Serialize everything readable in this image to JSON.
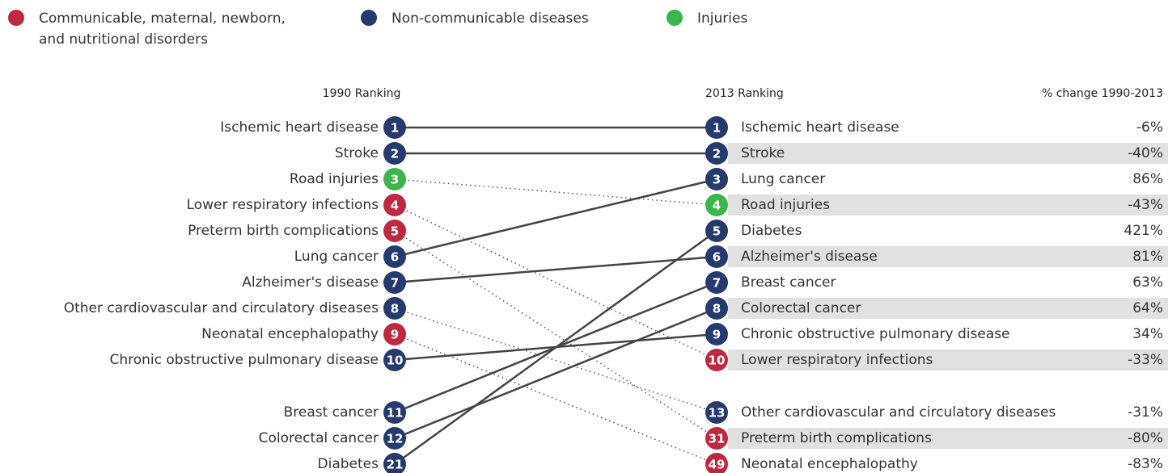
{
  "chart_data": {
    "type": "slope",
    "legend": [
      {
        "name": [
          "Communicable, maternal, newborn,",
          "and nutritional disorders"
        ],
        "color": "#c0283f"
      },
      {
        "name": [
          "Non-communicable diseases"
        ],
        "color": "#253a6e"
      },
      {
        "name": [
          "Injuries"
        ],
        "color": "#3cb54a"
      }
    ],
    "left_title": "1990 Ranking",
    "right_title": "2013 Ranking",
    "change_title": "% change 1990-2013",
    "left_labels": [
      "Ischemic heart disease",
      "Stroke",
      "Road injuries",
      "Lower respiratory infections",
      "Preterm birth complications",
      "Lung cancer",
      "Alzheimer's disease",
      "Other cardiovascular and circulatory diseases",
      "Neonatal encephalopathy",
      "Chronic obstructive pulmonary disease",
      "Breast cancer",
      "Colorectal cancer",
      "Diabetes"
    ],
    "left_ranks": [
      1,
      2,
      3,
      4,
      5,
      6,
      7,
      8,
      9,
      10,
      11,
      12,
      21
    ],
    "left_groups": [
      1,
      1,
      2,
      0,
      0,
      1,
      1,
      1,
      0,
      1,
      1,
      1,
      1
    ],
    "right_labels": [
      "Ischemic heart disease",
      "Stroke",
      "Lung cancer",
      "Road injuries",
      "Diabetes",
      "Alzheimer's disease",
      "Breast cancer",
      "Colorectal cancer",
      "Chronic obstructive pulmonary disease",
      "Lower respiratory infections",
      "Other cardiovascular and circulatory diseases",
      "Preterm birth complications",
      "Neonatal encephalopathy"
    ],
    "right_ranks": [
      1,
      2,
      3,
      4,
      5,
      6,
      7,
      8,
      9,
      10,
      13,
      31,
      49
    ],
    "right_groups": [
      1,
      1,
      1,
      2,
      1,
      1,
      1,
      1,
      1,
      0,
      1,
      0,
      0
    ],
    "values": [
      -6,
      -40,
      86,
      -43,
      421,
      81,
      63,
      64,
      34,
      -33,
      -31,
      -80,
      -83
    ],
    "value_labels": [
      "-6%",
      "-40%",
      "86%",
      "-43%",
      "421%",
      "81%",
      "63%",
      "64%",
      "34%",
      "-33%",
      "-31%",
      "-80%",
      "-83%"
    ]
  }
}
